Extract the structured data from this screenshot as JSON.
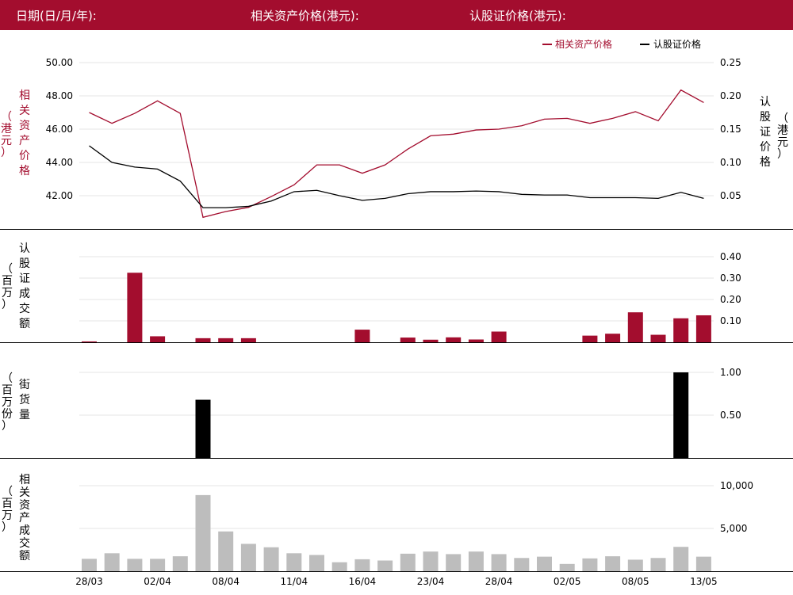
{
  "header": {
    "date_label": "日期(日/月/年):",
    "underlying_label": "相关资产价格(港元):",
    "warrant_label": "认股证价格(港元):"
  },
  "colors": {
    "brand": "#a30d2e",
    "underlying_line": "#a30d2e",
    "warrant_line": "#000000",
    "warrant_turnover_bar": "#a30d2e",
    "outstanding_bar": "#000000",
    "underlying_turnover_bar": "#bdbdbd"
  },
  "chart_data": [
    {
      "type": "line",
      "legend": [
        "相关资产价格",
        "认股证价格"
      ],
      "legend_position": "top-right",
      "ylabel_left": [
        "相",
        "关",
        "资",
        "产",
        "价",
        "格"
      ],
      "ylabel_left_unit": [
        "（",
        "港",
        "元",
        "）"
      ],
      "ylabel_right": [
        "认",
        "股",
        "证",
        "价",
        "格"
      ],
      "ylabel_right_unit": [
        "（",
        "港",
        "元",
        "）"
      ],
      "yticks_left": [
        "50.00",
        "48.00",
        "46.00",
        "44.00",
        "42.00"
      ],
      "yticks_right": [
        "0.25",
        "0.20",
        "0.15",
        "0.10",
        "0.05"
      ],
      "ylim_left": [
        40.0,
        50.0
      ],
      "ylim_right": [
        0.0,
        0.25
      ],
      "grid": true,
      "series": [
        {
          "name": "相关资产价格",
          "axis": "left",
          "values": [
            47.0,
            46.35,
            46.95,
            47.7,
            46.95,
            40.7,
            41.05,
            41.3,
            41.95,
            42.65,
            43.85,
            43.85,
            43.35,
            43.85,
            44.8,
            45.6,
            45.7,
            45.95,
            46.0,
            46.2,
            46.6,
            46.65,
            46.35,
            46.65,
            47.05,
            46.5,
            48.35,
            47.6
          ]
        },
        {
          "name": "认股证价格",
          "axis": "right",
          "values": [
            0.125,
            0.1,
            0.093,
            0.09,
            0.072,
            0.032,
            0.032,
            0.034,
            0.042,
            0.056,
            0.058,
            0.05,
            0.043,
            0.046,
            0.053,
            0.056,
            0.056,
            0.057,
            0.056,
            0.052,
            0.051,
            0.051,
            0.047,
            0.047,
            0.047,
            0.046,
            0.055,
            0.046
          ]
        }
      ]
    },
    {
      "type": "bar",
      "ylabel": [
        "认",
        "股",
        "证",
        "成",
        "交",
        "额"
      ],
      "ylabel_unit": [
        "（",
        "百",
        "万",
        "）"
      ],
      "yticks": [
        "0.40",
        "0.30",
        "0.20",
        "0.10"
      ],
      "ylim": [
        0,
        0.4
      ],
      "grid": true,
      "values": [
        0.004,
        0,
        0.325,
        0.028,
        0,
        0.019,
        0.019,
        0.019,
        0,
        0,
        0,
        0,
        0.059,
        0,
        0.022,
        0.012,
        0.023,
        0.013,
        0.05,
        0,
        0,
        0,
        0.031,
        0.04,
        0.14,
        0.035,
        0.112,
        0.126
      ]
    },
    {
      "type": "bar",
      "ylabel": [
        "街",
        "货",
        "量"
      ],
      "ylabel_unit": [
        "（",
        "百",
        "万",
        "份",
        "）"
      ],
      "yticks": [
        "1.00",
        "0.50"
      ],
      "ylim": [
        0,
        1.0
      ],
      "grid": true,
      "values": [
        0,
        0,
        0,
        0,
        0,
        0.68,
        0,
        0,
        0,
        0,
        0,
        0,
        0,
        0,
        0,
        0,
        0,
        0,
        0,
        0,
        0,
        0,
        0,
        0,
        0,
        0,
        1.0,
        0
      ]
    },
    {
      "type": "bar",
      "ylabel": [
        "相",
        "关",
        "资",
        "产",
        "成",
        "交",
        "额"
      ],
      "ylabel_unit": [
        "（",
        "百",
        "万",
        "）"
      ],
      "yticks": [
        "10,000",
        "5,000"
      ],
      "ylim": [
        0,
        10000
      ],
      "grid": true,
      "values": [
        1450,
        2100,
        1450,
        1450,
        1750,
        8900,
        4650,
        3200,
        2800,
        2100,
        1900,
        1050,
        1400,
        1250,
        2050,
        2300,
        2000,
        2300,
        2000,
        1550,
        1700,
        850,
        1500,
        1750,
        1350,
        1550,
        2850,
        1700
      ],
      "xticks": [
        {
          "index": 0,
          "label": "28/03"
        },
        {
          "index": 3,
          "label": "02/04"
        },
        {
          "index": 6,
          "label": "08/04"
        },
        {
          "index": 9,
          "label": "11/04"
        },
        {
          "index": 12,
          "label": "16/04"
        },
        {
          "index": 15,
          "label": "23/04"
        },
        {
          "index": 18,
          "label": "28/04"
        },
        {
          "index": 21,
          "label": "02/05"
        },
        {
          "index": 24,
          "label": "08/05"
        },
        {
          "index": 27,
          "label": "13/05"
        }
      ]
    }
  ]
}
